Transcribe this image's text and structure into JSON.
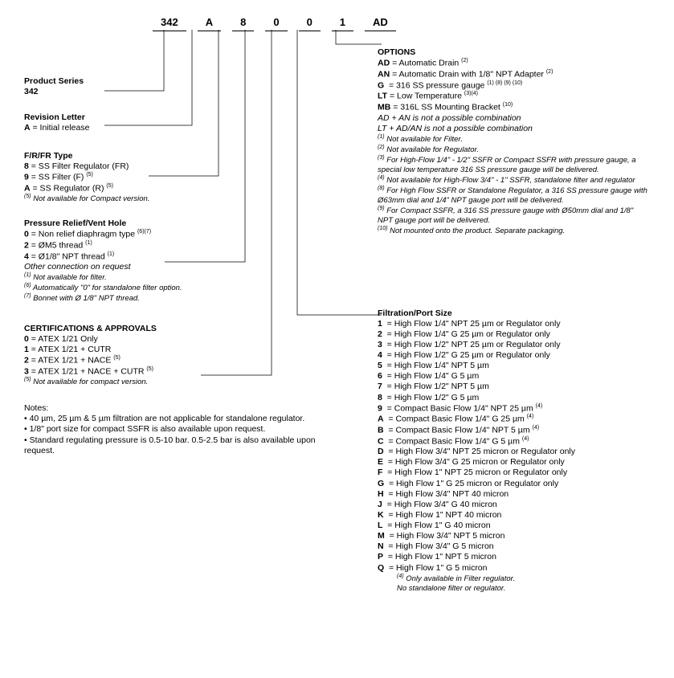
{
  "code": {
    "c1": "342",
    "c2": "A",
    "c3": "8",
    "c4": "0",
    "c5": "0",
    "c6": "1",
    "c7": "AD"
  },
  "productSeries": {
    "title": "Product Series",
    "sub": "342"
  },
  "revisionLetter": {
    "title": "Revision Letter",
    "items": [
      {
        "code": "A",
        "desc": "= Initial release"
      }
    ]
  },
  "frType": {
    "title": "F/R/FR Type",
    "items": [
      {
        "code": "8",
        "desc": "= SS Filter Regulator (FR)"
      },
      {
        "code": "9",
        "desc": "= SS Filter (F) ",
        "sup": "(5)"
      },
      {
        "code": "A",
        "desc": "= SS Regulator (R) ",
        "sup": "(5)"
      }
    ],
    "foot": {
      "sup": "(5)",
      "text": " Not available for Compact version."
    }
  },
  "pressureRelief": {
    "title": "Pressure Relief/Vent Hole",
    "items": [
      {
        "code": "0",
        "desc": "= Non relief diaphragm type ",
        "sup": "(6)(7)"
      },
      {
        "code": "2",
        "desc": "= ØM5 thread ",
        "sup": "(1)"
      },
      {
        "code": "4",
        "desc": "= Ø1/8\" NPT thread ",
        "sup": "(1)"
      }
    ],
    "other": "Other connection on request",
    "foots": [
      {
        "sup": "(1)",
        "text": " Not available for filter."
      },
      {
        "sup": "(6)",
        "text": " Automatically \"0\" for standalone filter option."
      },
      {
        "sup": "(7)",
        "text": " Bonnet with Ø 1/8\" NPT thread."
      }
    ]
  },
  "certs": {
    "title": "CERTIFICATIONS & APPROVALS",
    "items": [
      {
        "code": "0",
        "desc": "= ATEX 1/21 Only"
      },
      {
        "code": "1",
        "desc": "= ATEX 1/21 + CUTR"
      },
      {
        "code": "2",
        "desc": "= ATEX 1/21 + NACE ",
        "sup": "(5)"
      },
      {
        "code": "3",
        "desc": "= ATEX 1/21 + NACE + CUTR ",
        "sup": "(5)"
      }
    ],
    "foot": {
      "sup": "(5)",
      "text": " Not available for compact version."
    }
  },
  "notes": {
    "title": "Notes:",
    "lines": [
      "• 40 µm, 25 µm & 5 µm filtration are not applicable for standalone regulator.",
      "• 1/8\" port size for compact SSFR is also available upon request.",
      "• Standard regulating pressure is 0.5-10 bar. 0.5-2.5 bar is also available upon request."
    ]
  },
  "options": {
    "title": "OPTIONS",
    "items": [
      {
        "code": "AD",
        "desc": "= Automatic Drain ",
        "sup": "(2)"
      },
      {
        "code": "AN",
        "desc": "= Automatic Drain with 1/8\" NPT Adapter ",
        "sup": "(2)"
      },
      {
        "code": "G",
        "desc": "  = 316 SS pressure gauge ",
        "sup": "(1) (8) (9) (10)"
      },
      {
        "code": "LT",
        "desc": " = Low Temperature ",
        "sup": "(3)(4)"
      },
      {
        "code": "MB",
        "desc": "= 316L SS Mounting Bracket ",
        "sup": "(10)"
      }
    ],
    "extras": [
      "AD + AN is not a possible combination",
      "LT + AD/AN is not a possible combination"
    ],
    "foots": [
      {
        "sup": "(1)",
        "text": " Not available for Filter."
      },
      {
        "sup": "(2)",
        "text": " Not available for Regulator."
      },
      {
        "sup": "(3)",
        "text": " For High-Flow 1/4\" - 1/2\" SSFR or Compact SSFR with pressure gauge, a special low temperature 316 SS pressure gauge will be delivered."
      },
      {
        "sup": "(4)",
        "text": " Not available for High-Flow 3/4\" - 1\" SSFR, standalone filter and regulator"
      },
      {
        "sup": "(8)",
        "text": " For High Flow SSFR or Standalone Regulator, a 316 SS pressure gauge with Ø63mm dial and 1/4\" NPT gauge port will be delivered."
      },
      {
        "sup": "(9)",
        "text": " For Compact SSFR, a 316 SS pressure gauge with Ø50mm dial and 1/8\" NPT gauge port will be delivered."
      },
      {
        "sup": "(10)",
        "text": " Not mounted onto the product. Separate packaging."
      }
    ]
  },
  "filtration": {
    "title": "Filtration/Port Size",
    "items": [
      {
        "code": "1",
        "desc": "= High Flow 1/4\" NPT 25 µm or Regulator only"
      },
      {
        "code": "2",
        "desc": "= High Flow 1/4\" G 25 µm or Regulator only"
      },
      {
        "code": "3",
        "desc": "= High Flow 1/2\" NPT 25 µm or Regulator only"
      },
      {
        "code": "4",
        "desc": "= High Flow 1/2\" G 25 µm or Regulator only"
      },
      {
        "code": "5",
        "desc": "= High Flow 1/4\" NPT 5 µm"
      },
      {
        "code": "6",
        "desc": "= High Flow 1/4\" G 5 µm"
      },
      {
        "code": "7",
        "desc": "= High Flow 1/2\" NPT 5 µm"
      },
      {
        "code": "8",
        "desc": "= High Flow 1/2\" G 5 µm"
      },
      {
        "code": "9",
        "desc": "= Compact Basic Flow 1/4\" NPT 25 µm ",
        "sup": "(4)"
      },
      {
        "code": "A",
        "desc": "= Compact Basic Flow 1/4\" G 25 µm ",
        "sup": "(4)"
      },
      {
        "code": "B",
        "desc": "= Compact Basic Flow 1/4\" NPT 5 µm ",
        "sup": "(4)"
      },
      {
        "code": "C",
        "desc": "= Compact Basic Flow 1/4\" G 5 µm ",
        "sup": "(4)"
      },
      {
        "code": "D",
        "desc": "= High Flow 3/4\" NPT 25 micron or Regulator only"
      },
      {
        "code": "E",
        "desc": "= High Flow 3/4\" G 25 micron or Regulator only"
      },
      {
        "code": "F",
        "desc": "= High Flow 1\" NPT 25 micron or Regulator only"
      },
      {
        "code": "G",
        "desc": "= High Flow 1\" G 25 micron or Regulator only"
      },
      {
        "code": "H",
        "desc": "= High Flow 3/4\" NPT 40 micron"
      },
      {
        "code": "J",
        "desc": "= High Flow 3/4\" G 40 micron"
      },
      {
        "code": "K",
        "desc": "= High Flow 1\" NPT 40 micron"
      },
      {
        "code": "L",
        "desc": "= High Flow 1\" G 40 micron"
      },
      {
        "code": "M",
        "desc": "= High Flow 3/4\" NPT 5 micron"
      },
      {
        "code": "N",
        "desc": "= High Flow 3/4\" G 5 micron"
      },
      {
        "code": "P",
        "desc": "= High Flow 1\" NPT 5 micron"
      },
      {
        "code": "Q",
        "desc": "= High Flow 1\" G 5 micron"
      }
    ],
    "foots": [
      {
        "sup": "(4)",
        "text": " Only available in Filter regulator."
      },
      {
        "sup": "",
        "text": "No standalone filter or regulator."
      }
    ]
  }
}
